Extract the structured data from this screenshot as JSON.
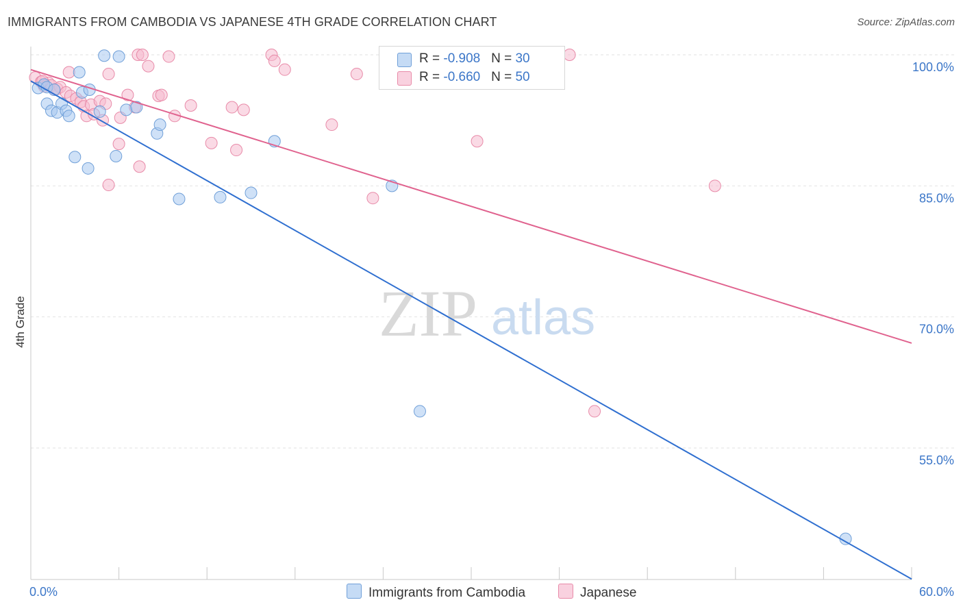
{
  "title": "IMMIGRANTS FROM CAMBODIA VS JAPANESE 4TH GRADE CORRELATION CHART",
  "source": "Source: ZipAtlas.com",
  "watermark": {
    "zip": "ZIP",
    "atlas": "atlas"
  },
  "legend": {
    "rows": [
      {
        "r_label": "R = ",
        "r_value": "-0.908",
        "n_label": "N = ",
        "n_value": "30",
        "color": "#a8c8f0",
        "border": "#6f9fd8"
      },
      {
        "r_label": "R = ",
        "r_value": "-0.660",
        "n_label": "N = ",
        "n_value": "50",
        "color": "#f6bcd0",
        "border": "#e88aa8"
      }
    ]
  },
  "bottom_legend": {
    "series1": "Immigrants from Cambodia",
    "series2": "Japanese"
  },
  "colors": {
    "cambodia_fill": "#a8c8f0",
    "cambodia_stroke": "#6f9fd8",
    "cambodia_line": "#2f6fd0",
    "japanese_fill": "#f6bcd0",
    "japanese_stroke": "#e88aa8",
    "japanese_line": "#e0628e",
    "grid": "#e2e2e2",
    "axis_text": "#3b76c8"
  },
  "chart_data": {
    "type": "scatter",
    "title": "IMMIGRANTS FROM CAMBODIA VS JAPANESE 4TH GRADE CORRELATION CHART",
    "xlabel": "",
    "ylabel": "4th Grade",
    "xlim": [
      0,
      60
    ],
    "ylim": [
      40,
      102
    ],
    "x_tick_labels": [
      "0.0%",
      "60.0%"
    ],
    "y_ticks": [
      55,
      70,
      85,
      100
    ],
    "y_tick_labels": [
      "55.0%",
      "70.0%",
      "85.0%",
      "100.0%"
    ],
    "grid": "horizontal dashed",
    "legend_position": "top-center",
    "series": [
      {
        "name": "Immigrants from Cambodia",
        "r": -0.908,
        "n": 30,
        "trend": {
          "x": [
            0,
            60
          ],
          "y": [
            97.0,
            40.0
          ]
        },
        "points": [
          [
            0.5,
            96.2
          ],
          [
            0.9,
            96.6
          ],
          [
            1.1,
            96.3
          ],
          [
            1.1,
            94.4
          ],
          [
            1.4,
            93.6
          ],
          [
            1.6,
            96.0
          ],
          [
            1.8,
            93.4
          ],
          [
            2.1,
            94.4
          ],
          [
            2.4,
            93.6
          ],
          [
            2.6,
            93.0
          ],
          [
            3.0,
            88.3
          ],
          [
            3.3,
            98.0
          ],
          [
            3.5,
            95.7
          ],
          [
            3.9,
            87.0
          ],
          [
            4.0,
            96.0
          ],
          [
            4.7,
            93.5
          ],
          [
            5.0,
            99.9
          ],
          [
            5.8,
            88.4
          ],
          [
            6.0,
            99.8
          ],
          [
            6.5,
            93.7
          ],
          [
            7.2,
            94.0
          ],
          [
            8.6,
            91.0
          ],
          [
            8.8,
            92.0
          ],
          [
            10.1,
            83.5
          ],
          [
            12.9,
            83.7
          ],
          [
            15.0,
            84.2
          ],
          [
            16.6,
            90.1
          ],
          [
            24.6,
            85.0
          ],
          [
            26.5,
            59.2
          ],
          [
            55.5,
            44.6
          ]
        ]
      },
      {
        "name": "Japanese",
        "r": -0.66,
        "n": 50,
        "trend": {
          "x": [
            0,
            60
          ],
          "y": [
            98.3,
            67.0
          ]
        },
        "points": [
          [
            0.3,
            97.4
          ],
          [
            0.7,
            96.9
          ],
          [
            0.9,
            96.4
          ],
          [
            1.2,
            96.8
          ],
          [
            1.4,
            96.5
          ],
          [
            1.8,
            96.1
          ],
          [
            2.0,
            96.3
          ],
          [
            2.4,
            95.7
          ],
          [
            2.7,
            95.3
          ],
          [
            2.6,
            98.0
          ],
          [
            3.1,
            95.0
          ],
          [
            3.4,
            94.6
          ],
          [
            3.6,
            94.1
          ],
          [
            3.8,
            93.0
          ],
          [
            4.1,
            94.3
          ],
          [
            4.3,
            93.2
          ],
          [
            4.7,
            94.7
          ],
          [
            4.9,
            92.5
          ],
          [
            5.1,
            94.4
          ],
          [
            5.3,
            85.1
          ],
          [
            5.3,
            97.8
          ],
          [
            6.1,
            92.8
          ],
          [
            6.0,
            89.8
          ],
          [
            6.6,
            95.4
          ],
          [
            7.1,
            94.0
          ],
          [
            7.3,
            100.0
          ],
          [
            7.6,
            100.0
          ],
          [
            7.4,
            87.2
          ],
          [
            8.0,
            98.7
          ],
          [
            8.7,
            95.3
          ],
          [
            8.9,
            95.4
          ],
          [
            9.4,
            99.8
          ],
          [
            9.8,
            93.0
          ],
          [
            10.9,
            94.2
          ],
          [
            12.3,
            89.9
          ],
          [
            13.7,
            94.0
          ],
          [
            14.0,
            89.1
          ],
          [
            14.5,
            93.7
          ],
          [
            16.4,
            100.0
          ],
          [
            16.6,
            99.3
          ],
          [
            17.3,
            98.3
          ],
          [
            20.5,
            92.0
          ],
          [
            22.2,
            97.8
          ],
          [
            23.3,
            83.6
          ],
          [
            30.4,
            90.1
          ],
          [
            36.7,
            100.0
          ],
          [
            38.4,
            59.2
          ],
          [
            46.6,
            85.0
          ],
          [
            0.8,
            97.0
          ],
          [
            1.6,
            96.0
          ]
        ]
      }
    ]
  }
}
